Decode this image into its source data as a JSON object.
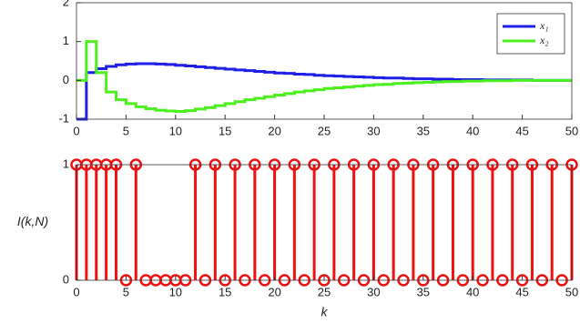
{
  "chart_data": [
    {
      "type": "stairs",
      "x": [
        0,
        1,
        2,
        3,
        4,
        5,
        6,
        7,
        8,
        9,
        10,
        11,
        12,
        13,
        14,
        15,
        16,
        17,
        18,
        19,
        20,
        21,
        22,
        23,
        24,
        25,
        26,
        27,
        28,
        29,
        30,
        31,
        32,
        33,
        34,
        35,
        36,
        37,
        38,
        39,
        40,
        41,
        42,
        43,
        44,
        45,
        46,
        47,
        48,
        49,
        50
      ],
      "series": [
        {
          "name": "x₁",
          "color": "#1f1fe6",
          "values": [
            -1,
            0.2,
            0.3,
            0.36,
            0.4,
            0.42,
            0.43,
            0.43,
            0.42,
            0.41,
            0.39,
            0.37,
            0.35,
            0.33,
            0.31,
            0.29,
            0.27,
            0.25,
            0.23,
            0.21,
            0.19,
            0.18,
            0.16,
            0.15,
            0.13,
            0.12,
            0.11,
            0.1,
            0.09,
            0.08,
            0.07,
            0.06,
            0.06,
            0.05,
            0.04,
            0.04,
            0.03,
            0.03,
            0.02,
            0.02,
            0.02,
            0.01,
            0.01,
            0.01,
            0.01,
            0.01,
            0,
            0,
            0,
            0,
            0
          ]
        },
        {
          "name": "x₂",
          "color": "#4cf01e",
          "values": [
            0,
            1,
            0.2,
            -0.3,
            -0.5,
            -0.6,
            -0.68,
            -0.73,
            -0.77,
            -0.79,
            -0.8,
            -0.78,
            -0.74,
            -0.7,
            -0.65,
            -0.6,
            -0.55,
            -0.5,
            -0.46,
            -0.42,
            -0.38,
            -0.34,
            -0.3,
            -0.27,
            -0.24,
            -0.21,
            -0.19,
            -0.17,
            -0.15,
            -0.13,
            -0.11,
            -0.1,
            -0.08,
            -0.07,
            -0.06,
            -0.05,
            -0.04,
            -0.03,
            -0.03,
            -0.02,
            -0.02,
            -0.01,
            -0.01,
            -0.01,
            0,
            0,
            0,
            0,
            0,
            0,
            0
          ]
        }
      ],
      "xlim": [
        0,
        50
      ],
      "xticks": [
        0,
        5,
        10,
        15,
        20,
        25,
        30,
        35,
        40,
        45,
        50
      ],
      "ylim": [
        -1,
        2
      ],
      "yticks": [
        -1,
        0,
        1,
        2
      ],
      "legend": "upper right"
    },
    {
      "type": "stem",
      "ylabel": "I(k,N)",
      "xlabel": "k",
      "color": "#ee1111",
      "x": [
        0,
        1,
        2,
        3,
        4,
        5,
        6,
        7,
        8,
        9,
        10,
        11,
        12,
        13,
        14,
        15,
        16,
        17,
        18,
        19,
        20,
        21,
        22,
        23,
        24,
        25,
        26,
        27,
        28,
        29,
        30,
        31,
        32,
        33,
        34,
        35,
        36,
        37,
        38,
        39,
        40,
        41,
        42,
        43,
        44,
        45,
        46,
        47,
        48,
        49,
        50
      ],
      "values": [
        1,
        1,
        1,
        1,
        1,
        0,
        1,
        0,
        0,
        0,
        0,
        0,
        1,
        0,
        1,
        0,
        1,
        0,
        1,
        0,
        1,
        0,
        1,
        0,
        1,
        0,
        1,
        0,
        1,
        0,
        1,
        0,
        1,
        0,
        1,
        0,
        1,
        0,
        1,
        0,
        1,
        0,
        1,
        0,
        1,
        0,
        1,
        0,
        1,
        0,
        1
      ],
      "xlim": [
        0,
        50
      ],
      "xticks": [
        0,
        5,
        10,
        15,
        20,
        25,
        30,
        35,
        40,
        45,
        50
      ],
      "ylim": [
        0,
        1
      ],
      "yticks": [
        0,
        1
      ]
    }
  ]
}
